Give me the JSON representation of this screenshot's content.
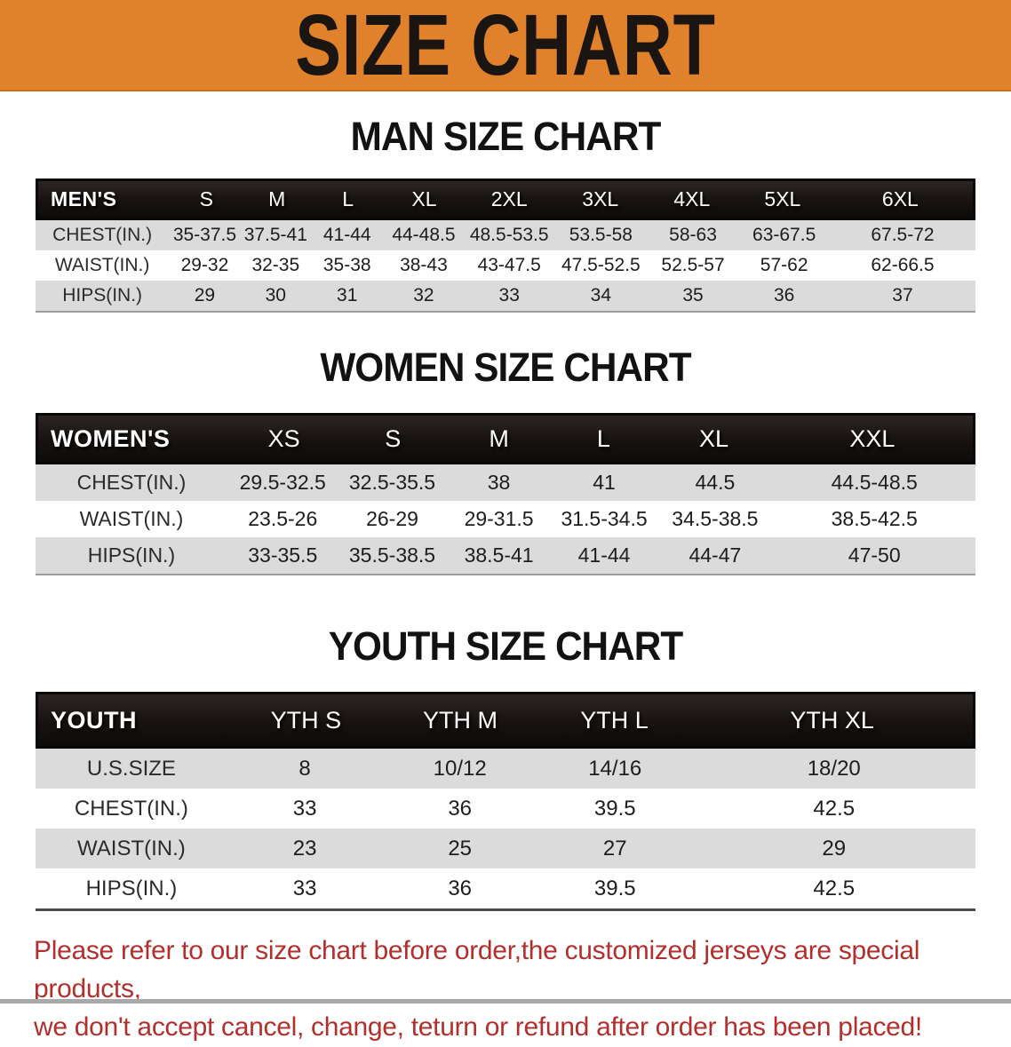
{
  "banner": {
    "title": "SIZE CHART"
  },
  "sections": [
    {
      "heading": "MAN SIZE CHART",
      "table": {
        "header_label": "MEN'S",
        "columns": [
          "S",
          "M",
          "L",
          "XL",
          "2XL",
          "3XL",
          "4XL",
          "5XL",
          "6XL"
        ],
        "rows": [
          {
            "label": "CHEST(IN.)",
            "values": [
              "35-37.5",
              "37.5-41",
              "41-44",
              "44-48.5",
              "48.5-53.5",
              "53.5-58",
              "58-63",
              "63-67.5",
              "67.5-72"
            ]
          },
          {
            "label": "WAIST(IN.)",
            "values": [
              "29-32",
              "32-35",
              "35-38",
              "38-43",
              "43-47.5",
              "47.5-52.5",
              "52.5-57",
              "57-62",
              "62-66.5"
            ]
          },
          {
            "label": "HIPS(IN.)",
            "values": [
              "29",
              "30",
              "31",
              "32",
              "33",
              "34",
              "35",
              "36",
              "37"
            ]
          }
        ]
      }
    },
    {
      "heading": "WOMEN SIZE CHART",
      "table": {
        "header_label": "WOMEN'S",
        "columns": [
          "XS",
          "S",
          "M",
          "L",
          "XL",
          "XXL"
        ],
        "rows": [
          {
            "label": "CHEST(IN.)",
            "values": [
              "29.5-32.5",
              "32.5-35.5",
              "38",
              "41",
              "44.5",
              "44.5-48.5"
            ]
          },
          {
            "label": "WAIST(IN.)",
            "values": [
              "23.5-26",
              "26-29",
              "29-31.5",
              "31.5-34.5",
              "34.5-38.5",
              "38.5-42.5"
            ]
          },
          {
            "label": "HIPS(IN.)",
            "values": [
              "33-35.5",
              "35.5-38.5",
              "38.5-41",
              "41-44",
              "44-47",
              "47-50"
            ]
          }
        ]
      }
    },
    {
      "heading": "YOUTH SIZE CHART",
      "table": {
        "header_label": "YOUTH",
        "columns": [
          "YTH S",
          "YTH M",
          "YTH L",
          "YTH XL"
        ],
        "rows": [
          {
            "label": "U.S.SIZE",
            "values": [
              "8",
              "10/12",
              "14/16",
              "18/20"
            ]
          },
          {
            "label": "CHEST(IN.)",
            "values": [
              "33",
              "36",
              "39.5",
              "42.5"
            ]
          },
          {
            "label": "WAIST(IN.)",
            "values": [
              "23",
              "25",
              "27",
              "29"
            ]
          },
          {
            "label": "HIPS(IN.)",
            "values": [
              "33",
              "36",
              "39.5",
              "42.5"
            ]
          }
        ]
      }
    }
  ],
  "disclaimer": {
    "line1": "Please refer to our size chart before order,the customized jerseys are special products,",
    "line2": "we don't accept cancel, change, teturn or refund after order has been placed!"
  },
  "colors": {
    "banner_bg": "#e0812c",
    "table_bar_bg": "#17120f",
    "row_stripe": "#dbdbdb",
    "disclaimer_text": "#b1302d"
  }
}
